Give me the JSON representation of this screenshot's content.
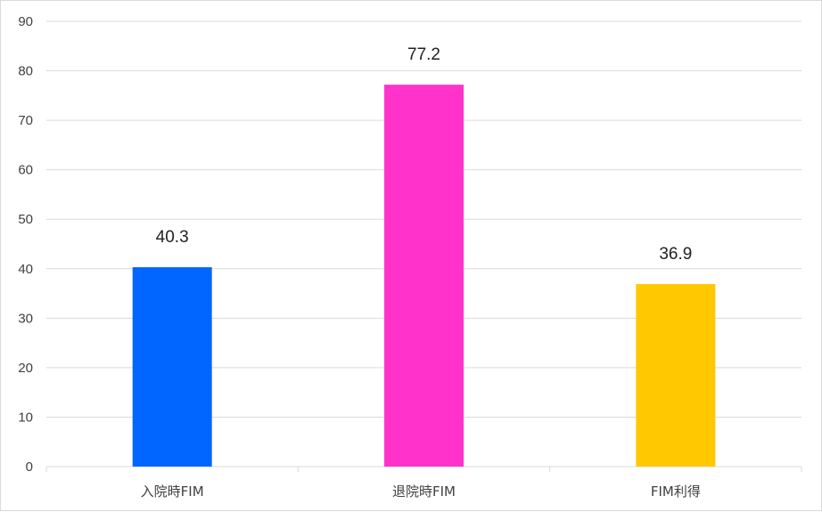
{
  "chart_data": {
    "type": "bar",
    "categories": [
      "入院時FIM",
      "退院時FIM",
      "FIM利得"
    ],
    "values": [
      40.3,
      77.2,
      36.9
    ],
    "value_labels": [
      "40.3",
      "77.2",
      "36.9"
    ],
    "colors": [
      "#0066ff",
      "#ff33cc",
      "#ffc800"
    ],
    "ylim": [
      0,
      90
    ],
    "yticks": [
      0,
      10,
      20,
      30,
      40,
      50,
      60,
      70,
      80,
      90
    ],
    "grid": true,
    "legend": "none"
  }
}
